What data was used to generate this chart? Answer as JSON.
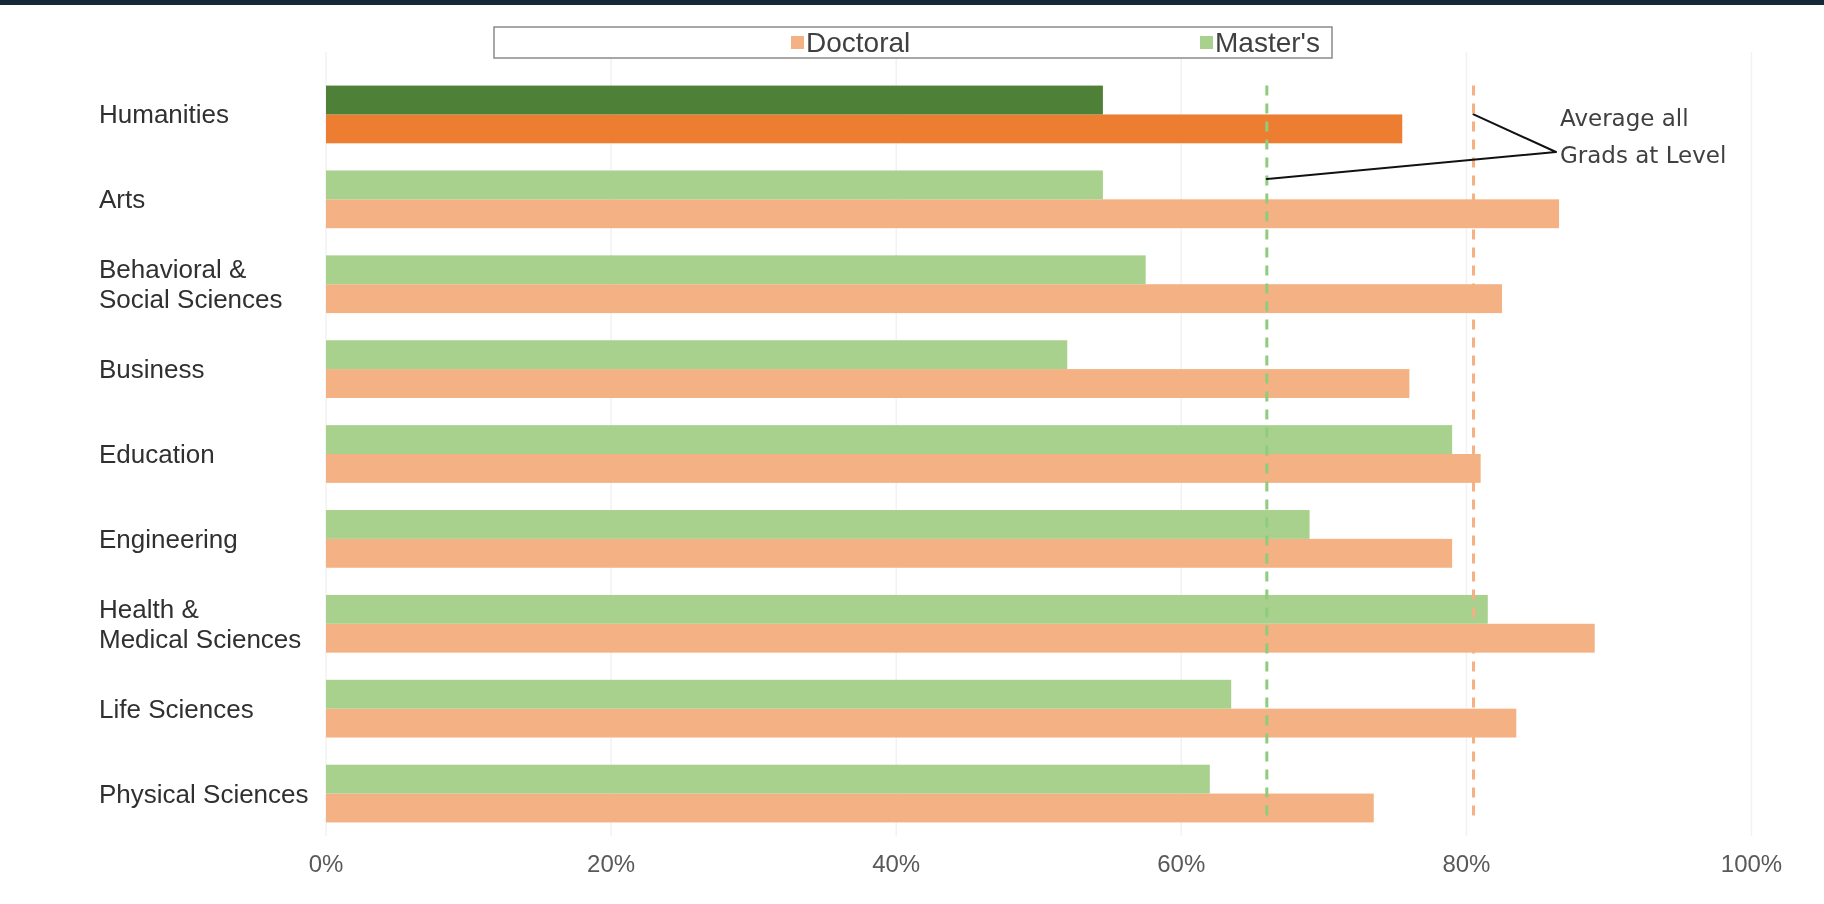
{
  "chart_data": {
    "type": "bar",
    "orientation": "horizontal",
    "categories": [
      "Humanities",
      "Arts",
      "Behavioral &\nSocial Sciences",
      "Business",
      "Education",
      "Engineering",
      "Health &\nMedical Sciences",
      "Life Sciences",
      "Physical Sciences"
    ],
    "series": [
      {
        "name": "Doctoral",
        "color": "#f4b183",
        "colors": [
          "#ed7d31",
          "#f4b183",
          "#f4b183",
          "#f4b183",
          "#f4b183",
          "#f4b183",
          "#f4b183",
          "#f4b183",
          "#f4b183"
        ],
        "values": [
          75.5,
          86.5,
          82.5,
          76,
          81,
          79,
          89,
          83.5,
          73.5
        ]
      },
      {
        "name": "Master's",
        "color": "#a9d18e",
        "colors": [
          "#4e8038",
          "#a9d18e",
          "#a9d18e",
          "#a9d18e",
          "#a9d18e",
          "#a9d18e",
          "#a9d18e",
          "#a9d18e",
          "#a9d18e"
        ],
        "values": [
          54.5,
          54.5,
          57.5,
          52,
          79,
          69,
          81.5,
          63.5,
          62
        ]
      }
    ],
    "xlim": [
      0,
      100
    ],
    "xticks": [
      {
        "value": 0,
        "label": "0%"
      },
      {
        "value": 20,
        "label": "20%"
      },
      {
        "value": 40,
        "label": "40%"
      },
      {
        "value": 60,
        "label": "60%"
      },
      {
        "value": 80,
        "label": "80%"
      },
      {
        "value": 100,
        "label": "100%"
      }
    ],
    "ref_lines": [
      {
        "axis": "x",
        "value": 66,
        "color": "#8fcc7d",
        "line_style": "dashed"
      },
      {
        "axis": "x",
        "value": 80.5,
        "color": "#f4b183",
        "line_style": "dashed"
      }
    ],
    "annotations": [
      {
        "text": "Average all\nGrads at Level",
        "x": 80.5,
        "y": "Humanities"
      }
    ],
    "grid": "x",
    "legend": "top"
  }
}
